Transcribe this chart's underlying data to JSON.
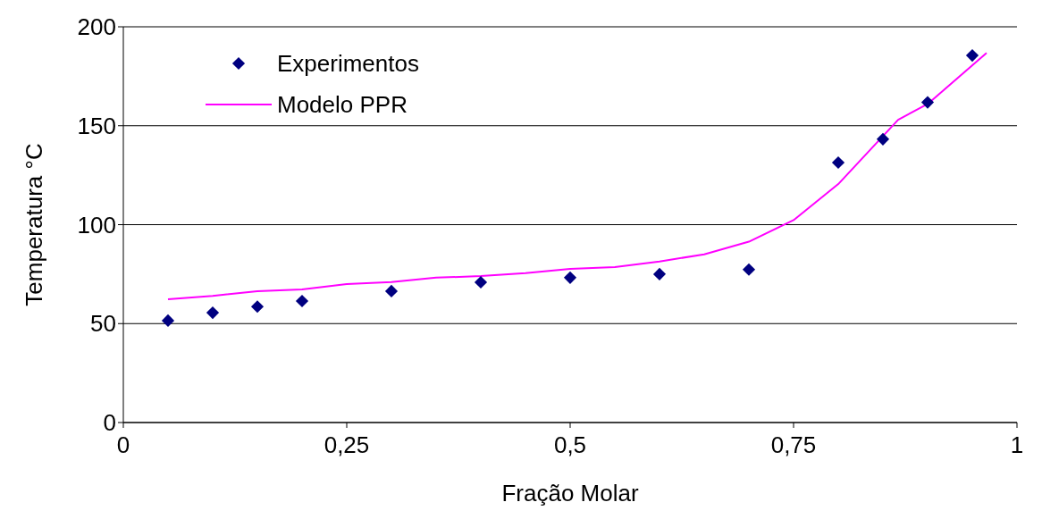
{
  "chart_data": {
    "type": "scatter",
    "xlabel": "Fração Molar",
    "ylabel": "Temperatura °C",
    "xlim": [
      0,
      1
    ],
    "xticks": [
      0,
      {
        "value": 0.25,
        "label": "0,25"
      },
      {
        "value": 0.5,
        "label": "0,5"
      },
      {
        "value": 0.75,
        "label": "0,75"
      },
      1
    ],
    "ylim": [
      0,
      200
    ],
    "yticks": [
      0,
      50,
      100,
      150,
      200
    ],
    "grid": "y",
    "legend": "top left",
    "series": [
      {
        "name": "Experimentos",
        "marker": "diamond",
        "color": "#000080",
        "x": [
          0.05,
          0.1,
          0.15,
          0.2,
          0.3,
          0.4,
          0.5,
          0.6,
          0.7,
          0.8,
          0.85,
          0.9,
          0.95
        ],
        "values": [
          51.5,
          55.5,
          58.6,
          61.4,
          66.4,
          70.9,
          73.2,
          75,
          77.3,
          131.4,
          143.2,
          161.8,
          185.5
        ]
      },
      {
        "name": "Modelo PPR",
        "type": "line",
        "marker": "none",
        "line_style": "solid",
        "color": "#ff00ff",
        "x": [
          0.05,
          0.1,
          0.15,
          0.2,
          0.25,
          0.3,
          0.35,
          0.4,
          0.45,
          0.5,
          0.55,
          0.6,
          0.65,
          0.7,
          0.75,
          0.8,
          0.867,
          0.9,
          0.966
        ],
        "values": [
          62.3,
          64,
          66.4,
          67.3,
          70,
          71,
          73.2,
          74,
          75.5,
          77.7,
          78.6,
          81.4,
          85,
          91.4,
          102.3,
          120.5,
          153,
          161,
          186.8
        ]
      }
    ]
  }
}
